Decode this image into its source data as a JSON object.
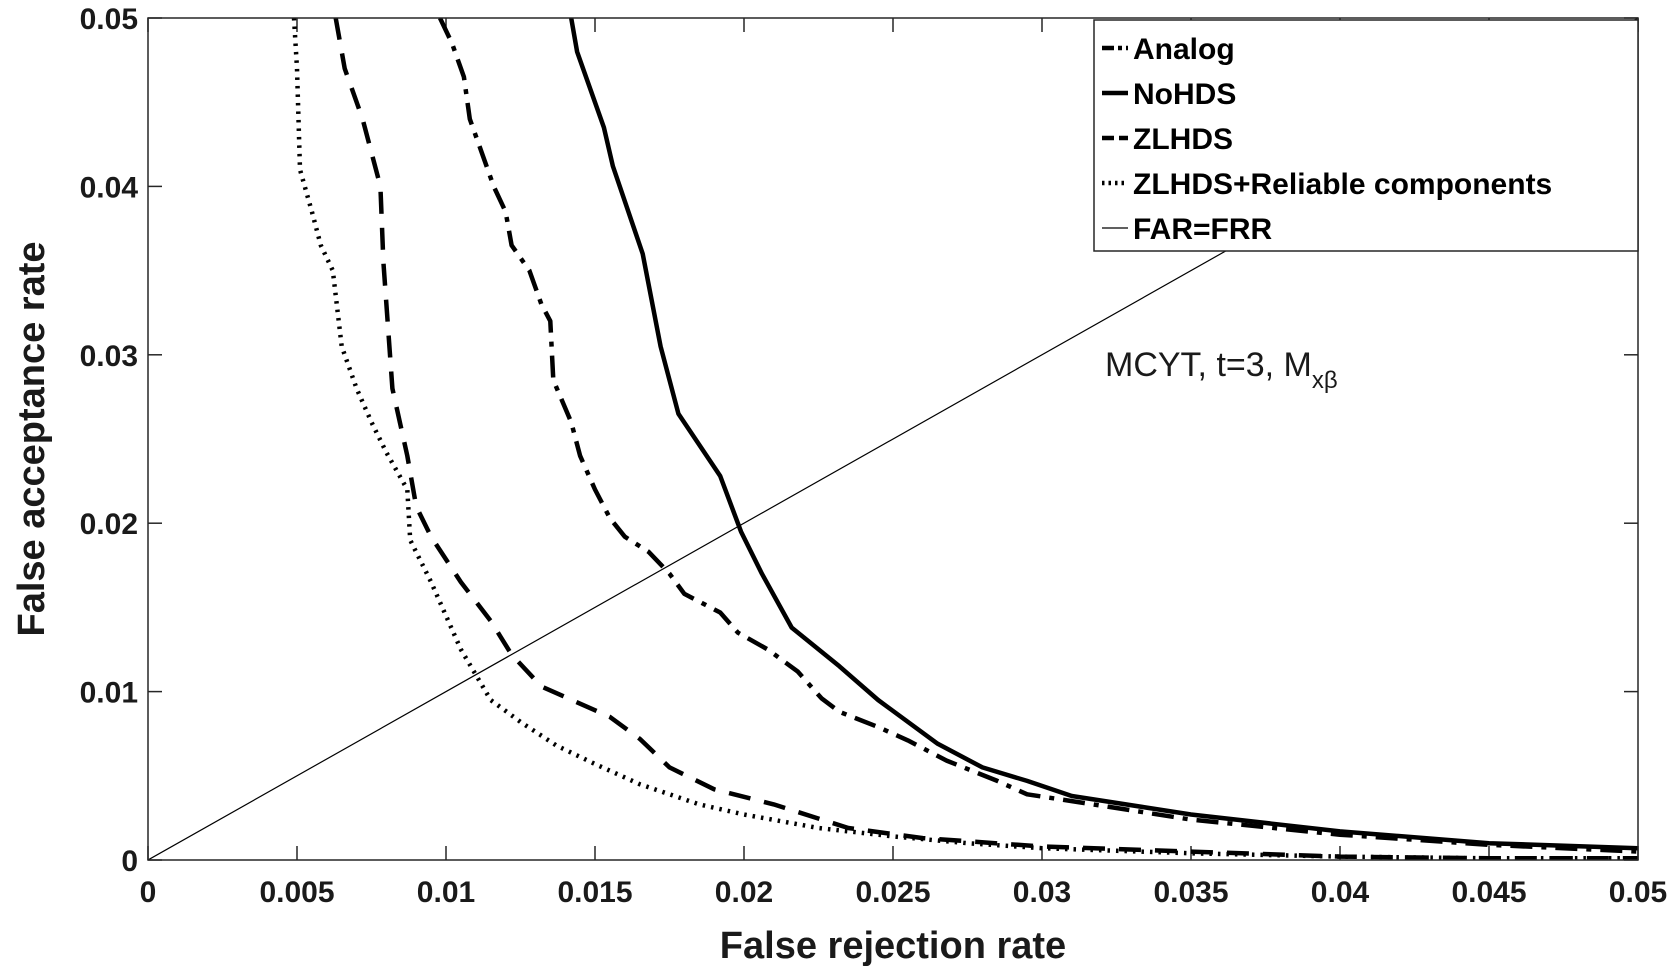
{
  "chart_data": {
    "type": "line",
    "xlabel": "False rejection rate",
    "ylabel": "False acceptance rate",
    "xlim": [
      0,
      0.05
    ],
    "ylim": [
      0,
      0.05
    ],
    "xticks": [
      0,
      0.005,
      0.01,
      0.015,
      0.02,
      0.025,
      0.03,
      0.035,
      0.04,
      0.045,
      0.05
    ],
    "xtick_labels": [
      "0",
      "0.005",
      "0.01",
      "0.015",
      "0.02",
      "0.025",
      "0.03",
      "0.035",
      "0.04",
      "0.045",
      "0.05"
    ],
    "yticks": [
      0,
      0.01,
      0.02,
      0.03,
      0.04,
      0.05
    ],
    "ytick_labels": [
      "0",
      "0.01",
      "0.02",
      "0.03",
      "0.04",
      "0.05"
    ],
    "legend_position": "top-right",
    "annotation": {
      "main": "MCYT, t=3, M",
      "subscript": "xβ"
    },
    "series": [
      {
        "name": "Analog",
        "style": "dashdot",
        "points": [
          [
            0.0098,
            0.05
          ],
          [
            0.0102,
            0.0485
          ],
          [
            0.0106,
            0.0465
          ],
          [
            0.0108,
            0.044
          ],
          [
            0.0112,
            0.042
          ],
          [
            0.0116,
            0.04
          ],
          [
            0.012,
            0.0385
          ],
          [
            0.0122,
            0.0365
          ],
          [
            0.0128,
            0.035
          ],
          [
            0.0132,
            0.033
          ],
          [
            0.0135,
            0.032
          ],
          [
            0.0136,
            0.0285
          ],
          [
            0.0142,
            0.026
          ],
          [
            0.0145,
            0.024
          ],
          [
            0.015,
            0.022
          ],
          [
            0.0155,
            0.0203
          ],
          [
            0.016,
            0.0192
          ],
          [
            0.0168,
            0.0183
          ],
          [
            0.0175,
            0.017
          ],
          [
            0.018,
            0.0158
          ],
          [
            0.0192,
            0.0147
          ],
          [
            0.0198,
            0.0135
          ],
          [
            0.0208,
            0.0125
          ],
          [
            0.0218,
            0.0112
          ],
          [
            0.0226,
            0.0096
          ],
          [
            0.0232,
            0.0088
          ],
          [
            0.0245,
            0.0079
          ],
          [
            0.0255,
            0.0071
          ],
          [
            0.0268,
            0.0059
          ],
          [
            0.0285,
            0.0047
          ],
          [
            0.0295,
            0.0039
          ],
          [
            0.031,
            0.0035
          ],
          [
            0.035,
            0.0024
          ],
          [
            0.04,
            0.0015
          ],
          [
            0.045,
            0.0009
          ],
          [
            0.05,
            0.0005
          ]
        ]
      },
      {
        "name": "NoHDS",
        "style": "solid",
        "points": [
          [
            0.0142,
            0.05
          ],
          [
            0.0144,
            0.048
          ],
          [
            0.0148,
            0.046
          ],
          [
            0.0153,
            0.0435
          ],
          [
            0.0156,
            0.0412
          ],
          [
            0.0166,
            0.036
          ],
          [
            0.0172,
            0.0305
          ],
          [
            0.0178,
            0.0265
          ],
          [
            0.0192,
            0.0228
          ],
          [
            0.0199,
            0.0195
          ],
          [
            0.0206,
            0.017
          ],
          [
            0.0216,
            0.0138
          ],
          [
            0.0232,
            0.0115
          ],
          [
            0.0245,
            0.0095
          ],
          [
            0.0265,
            0.0069
          ],
          [
            0.028,
            0.0055
          ],
          [
            0.0295,
            0.0047
          ],
          [
            0.031,
            0.0038
          ],
          [
            0.035,
            0.0027
          ],
          [
            0.04,
            0.0017
          ],
          [
            0.045,
            0.001
          ],
          [
            0.05,
            0.0007
          ]
        ]
      },
      {
        "name": "ZLHDS",
        "style": "dashed",
        "points": [
          [
            0.0063,
            0.05
          ],
          [
            0.0066,
            0.047
          ],
          [
            0.0072,
            0.044
          ],
          [
            0.0078,
            0.04
          ],
          [
            0.0079,
            0.0355
          ],
          [
            0.0082,
            0.028
          ],
          [
            0.0087,
            0.024
          ],
          [
            0.009,
            0.021
          ],
          [
            0.0095,
            0.0192
          ],
          [
            0.0105,
            0.0165
          ],
          [
            0.0115,
            0.0142
          ],
          [
            0.0122,
            0.0122
          ],
          [
            0.0132,
            0.0103
          ],
          [
            0.0155,
            0.0085
          ],
          [
            0.0165,
            0.0072
          ],
          [
            0.0175,
            0.0055
          ],
          [
            0.019,
            0.0042
          ],
          [
            0.021,
            0.0033
          ],
          [
            0.0235,
            0.0019
          ],
          [
            0.026,
            0.0013
          ],
          [
            0.03,
            0.0008
          ],
          [
            0.035,
            0.0005
          ],
          [
            0.04,
            0.0002
          ],
          [
            0.045,
            0.0001
          ],
          [
            0.05,
            0.0001
          ]
        ]
      },
      {
        "name": "ZLHDS+Reliable components",
        "style": "dotted",
        "points": [
          [
            0.0049,
            0.05
          ],
          [
            0.005,
            0.047
          ],
          [
            0.0051,
            0.041
          ],
          [
            0.0055,
            0.0385
          ],
          [
            0.0058,
            0.0365
          ],
          [
            0.0062,
            0.035
          ],
          [
            0.0065,
            0.0305
          ],
          [
            0.007,
            0.028
          ],
          [
            0.0075,
            0.026
          ],
          [
            0.008,
            0.0242
          ],
          [
            0.0087,
            0.022
          ],
          [
            0.0088,
            0.019
          ],
          [
            0.0095,
            0.0165
          ],
          [
            0.0105,
            0.0125
          ],
          [
            0.0115,
            0.0095
          ],
          [
            0.0125,
            0.0082
          ],
          [
            0.0137,
            0.0068
          ],
          [
            0.015,
            0.0057
          ],
          [
            0.0165,
            0.0045
          ],
          [
            0.0185,
            0.0033
          ],
          [
            0.02,
            0.0027
          ],
          [
            0.0225,
            0.0019
          ],
          [
            0.025,
            0.0014
          ],
          [
            0.0275,
            0.001
          ],
          [
            0.03,
            0.0007
          ],
          [
            0.035,
            0.0004
          ],
          [
            0.04,
            0.0002
          ],
          [
            0.045,
            0.0001
          ],
          [
            0.05,
            0.0001
          ]
        ]
      },
      {
        "name": "FAR=FRR",
        "style": "thin",
        "points": [
          [
            0,
            0
          ],
          [
            0.05,
            0.05
          ]
        ]
      }
    ]
  }
}
